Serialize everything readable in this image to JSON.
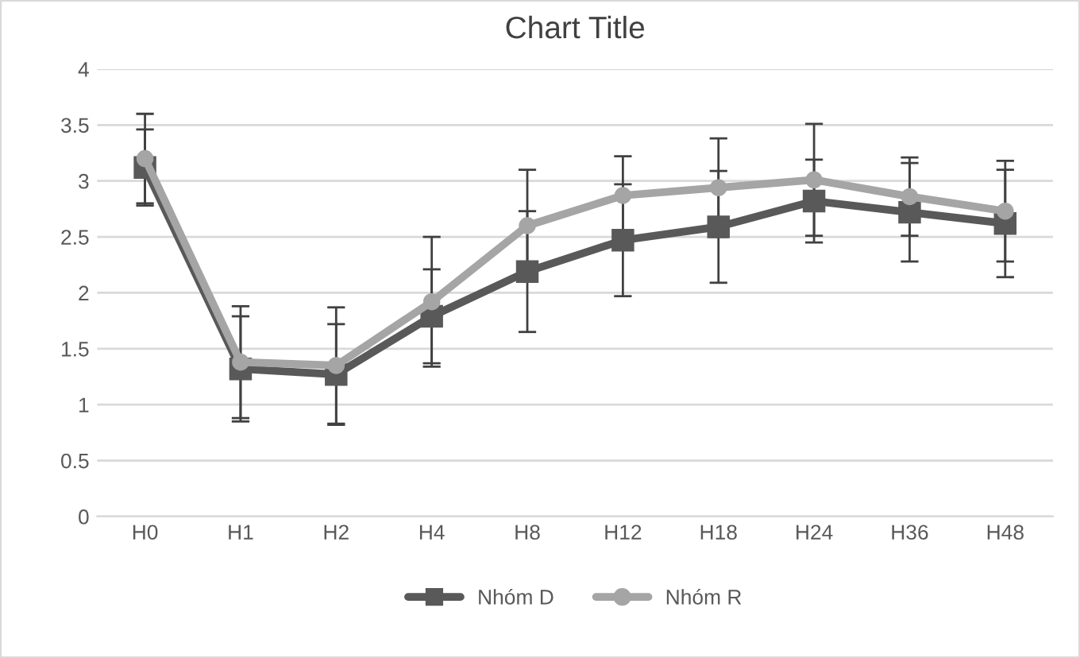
{
  "chart_data": {
    "type": "line",
    "title": "Chart Title",
    "categories": [
      "H0",
      "H1",
      "H2",
      "H4",
      "H8",
      "H12",
      "H18",
      "H24",
      "H36",
      "H48"
    ],
    "series": [
      {
        "name": "Nhóm D",
        "color": "#595959",
        "marker": "square",
        "values": [
          3.12,
          1.32,
          1.27,
          1.79,
          2.19,
          2.47,
          2.59,
          2.82,
          2.72,
          2.62
        ],
        "errors": [
          0.34,
          0.47,
          0.45,
          0.42,
          0.54,
          0.5,
          0.5,
          0.37,
          0.44,
          0.48
        ]
      },
      {
        "name": "Nhóm R",
        "color": "#a5a5a5",
        "marker": "circle",
        "values": [
          3.2,
          1.38,
          1.35,
          1.92,
          2.6,
          2.87,
          2.94,
          3.01,
          2.86,
          2.73
        ],
        "errors": [
          0.4,
          0.5,
          0.52,
          0.58,
          0.5,
          0.35,
          0.44,
          0.5,
          0.35,
          0.45
        ]
      }
    ],
    "ylim": [
      0,
      4
    ],
    "yticks": [
      0,
      0.5,
      1,
      1.5,
      2,
      2.5,
      3,
      3.5,
      4
    ],
    "grid": "y",
    "legend": "bottom",
    "line_style": "solid"
  }
}
